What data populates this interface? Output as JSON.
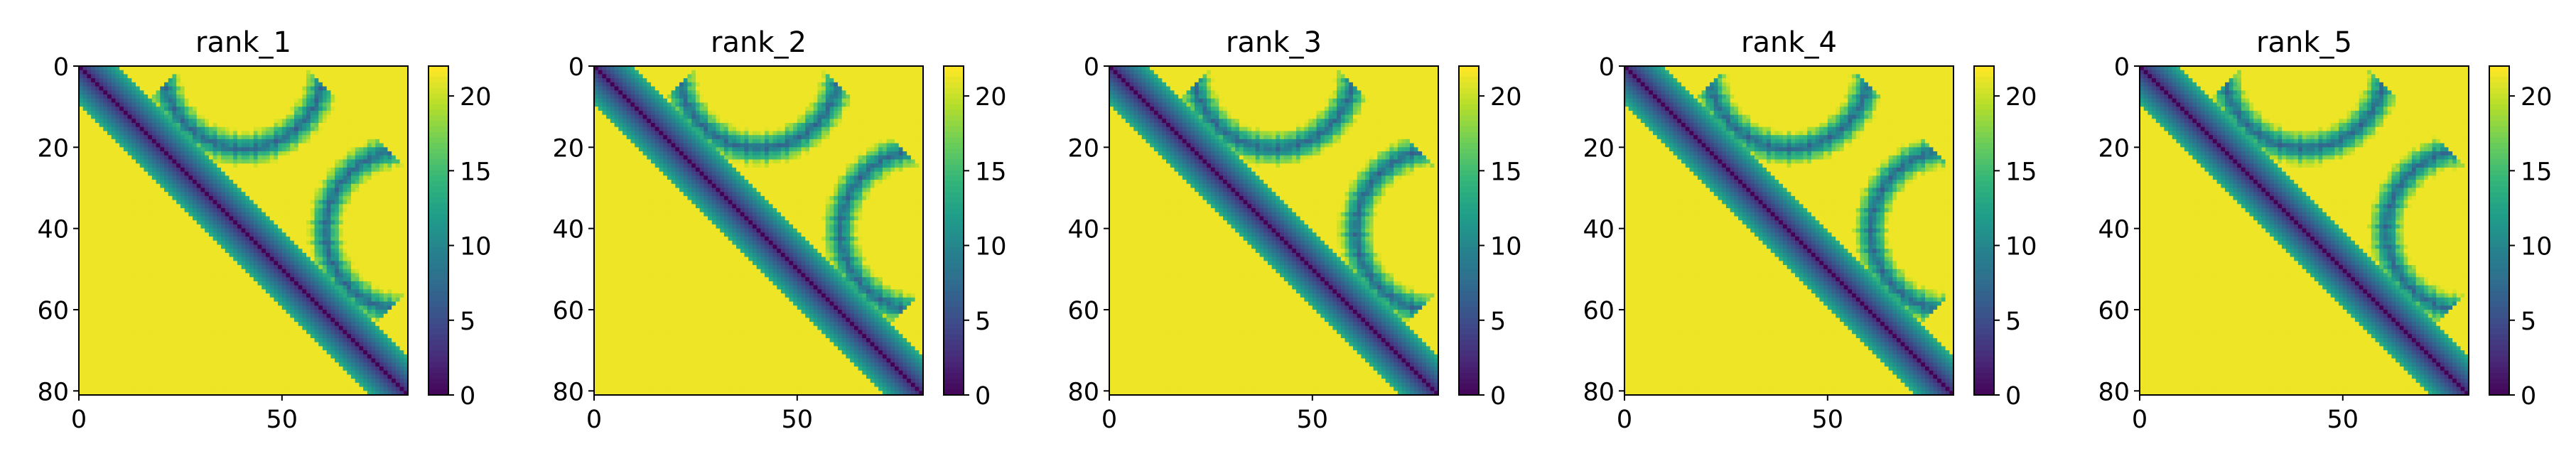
{
  "chart_data": [
    {
      "type": "heatmap",
      "title": "rank_1",
      "xlabel": "",
      "ylabel": "",
      "xlim": [
        0,
        81
      ],
      "ylim": [
        81,
        0
      ],
      "x_ticks": [
        "0",
        "50"
      ],
      "y_ticks": [
        "0",
        "20",
        "40",
        "60",
        "80"
      ],
      "colorbar": {
        "min": 0,
        "max": 22,
        "ticks": [
          "0",
          "5",
          "10",
          "15",
          "20"
        ],
        "colormap": "viridis"
      }
    },
    {
      "type": "heatmap",
      "title": "rank_2",
      "xlabel": "",
      "ylabel": "",
      "xlim": [
        0,
        81
      ],
      "ylim": [
        81,
        0
      ],
      "x_ticks": [
        "0",
        "50"
      ],
      "y_ticks": [
        "0",
        "20",
        "40",
        "60",
        "80"
      ],
      "colorbar": {
        "min": 0,
        "max": 22,
        "ticks": [
          "0",
          "5",
          "10",
          "15",
          "20"
        ],
        "colormap": "viridis"
      }
    },
    {
      "type": "heatmap",
      "title": "rank_3",
      "xlabel": "",
      "ylabel": "",
      "xlim": [
        0,
        81
      ],
      "ylim": [
        81,
        0
      ],
      "x_ticks": [
        "0",
        "50"
      ],
      "y_ticks": [
        "0",
        "20",
        "40",
        "60",
        "80"
      ],
      "colorbar": {
        "min": 0,
        "max": 22,
        "ticks": [
          "0",
          "5",
          "10",
          "15",
          "20"
        ],
        "colormap": "viridis"
      }
    },
    {
      "type": "heatmap",
      "title": "rank_4",
      "xlabel": "",
      "ylabel": "",
      "xlim": [
        0,
        81
      ],
      "ylim": [
        81,
        0
      ],
      "x_ticks": [
        "0",
        "50"
      ],
      "y_ticks": [
        "0",
        "20",
        "40",
        "60",
        "80"
      ],
      "colorbar": {
        "min": 0,
        "max": 22,
        "ticks": [
          "0",
          "5",
          "10",
          "15",
          "20"
        ],
        "colormap": "viridis"
      }
    },
    {
      "type": "heatmap",
      "title": "rank_5",
      "xlabel": "",
      "ylabel": "",
      "xlim": [
        0,
        81
      ],
      "ylim": [
        81,
        0
      ],
      "x_ticks": [
        "0",
        "50"
      ],
      "y_ticks": [
        "0",
        "20",
        "40",
        "60",
        "80"
      ],
      "colorbar": {
        "min": 0,
        "max": 22,
        "ticks": [
          "0",
          "5",
          "10",
          "15",
          "20"
        ],
        "colormap": "viridis"
      }
    }
  ]
}
